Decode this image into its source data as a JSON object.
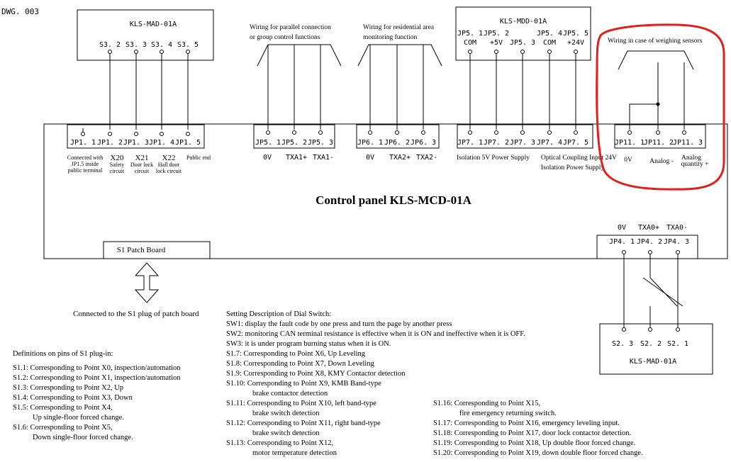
{
  "drawing_no": "DWG. 003",
  "main_panel": {
    "title": "Control panel KLS-MCD-01A",
    "patch_board": "S1 Patch Board",
    "patch_note": "Connected to the S1 plug of patch board"
  },
  "mad_top": {
    "title": "KLS-MAD-01A",
    "pins": [
      "S3. 2",
      "S3. 3",
      "S3. 4",
      "S3. 5"
    ]
  },
  "mdd": {
    "title": "KLS-MDD-01A",
    "pins": [
      "JP5. 1",
      "JP5. 2",
      "JP5. 3",
      "JP5. 4",
      "JP5. 5"
    ],
    "subs": [
      "COM",
      "+5V",
      "COM",
      "+24V"
    ]
  },
  "mad_bottom": {
    "title": "KLS-MAD-01A",
    "pins": [
      "S2. 3",
      "S2. 2",
      "S2. 1"
    ]
  },
  "captions": {
    "parallel": [
      "Wiring for parallel connection",
      "or group control functions"
    ],
    "residential": [
      "Wiring for residential area",
      "monitoring function"
    ],
    "weighing": "Wiring in case of weighing sensors"
  },
  "jp1": {
    "pins": [
      "JP1. 1",
      "JP1. 2",
      "JP1. 3",
      "JP1. 4",
      "JP1. 5"
    ],
    "x_labels": [
      "X20",
      "X21",
      "X22"
    ],
    "desc_1": [
      "Connected with",
      "JP1.5 inside",
      "public terminal"
    ],
    "desc_2": [
      "Safety",
      "circuit"
    ],
    "desc_3": [
      "Door lock",
      "circuit"
    ],
    "desc_4": [
      "Hall door",
      "lock circuit"
    ],
    "desc_5": "Public end"
  },
  "jp5": {
    "pins": [
      "JP5. 1",
      "JP5. 2",
      "JP5. 3"
    ],
    "labels": [
      "0V",
      "TXA1+",
      "TXA1-"
    ]
  },
  "jp6": {
    "pins": [
      "JP6. 1",
      "JP6. 2",
      "JP6. 3"
    ],
    "labels": [
      "0V",
      "TXA2+",
      "TXA2-"
    ]
  },
  "jp7": {
    "pins": [
      "JP7. 1",
      "JP7. 2",
      "JP7. 3",
      "JP7. 4",
      "JP7. 5"
    ],
    "label_a": "Isolation 5V Power Supply",
    "label_b1": "Optical Coupling Input 24V",
    "label_b2": "Isolation Power Supply"
  },
  "jp11": {
    "pins": [
      "JP11. 1",
      "JP11. 2",
      "JP11. 3"
    ],
    "l0": "0V",
    "l1": "Analog -",
    "l2a": "Analog",
    "l2b": "quantity +"
  },
  "jp4": {
    "pins": [
      "JP4. 1",
      "JP4. 2",
      "JP4. 3"
    ],
    "labels": [
      "0V",
      "TXA0+",
      "TXA0-"
    ]
  },
  "definitions": {
    "title": "Definitions on pins of S1 plug-in:",
    "lines": [
      "S1.1: Corresponding to Point X0, inspection/automation",
      "S1.2: Corresponding to Point X1, inspection/automation",
      "S1.3: Corresponding to Point X2, Up",
      "S1.4: Corresponding to Point X3, Down",
      "S1.5: Corresponding to Point X4,",
      "Up single-floor forced change.",
      "S1.6: Corresponding to Point X5,",
      "Down single-floor forced change."
    ]
  },
  "dial_switch": {
    "title": "Setting Description of Dial Switch:",
    "lines": [
      "SW1: display the fault code by one press and turn the page by another press",
      "SW2: monitoring CAN terminal resistance is effective when it is ON and ineffective when it is OFF.",
      "SW3: it is under program burning status when it is ON.",
      "S1.7: Corresponding to Point X6, Up Leveling",
      "S1.8: Corresponding to Point X7, Down Leveling",
      "S1.9: Corresponding to Point X8, KMY Contactor detection",
      "S1.10: Corresponding to Point X9, KMB Band-type",
      "brake contactor detection",
      "S1.11: Corresponding to Point X10, left band-type",
      "brake switch detection",
      "S1.12: Corresponding to Point X11, right band-type",
      "brake switch detection",
      "S1.13: Corresponding to Point X12,",
      "motor temperature detection"
    ]
  },
  "right_defs": {
    "lines": [
      "S1.16: Corresponding to Point X15,",
      "fire emergency returning switch.",
      "S1.17: Corresponding to Point X16, emergency leveling input.",
      "S1.18: Corresponding to Point X17, door lock contactor detection.",
      "S1.19: Corresponding to Point X18, Up double floor forced change.",
      "S1.20: Corresponding to Point X19, down double floor forced change."
    ]
  },
  "highlight_color": "#e0201c"
}
